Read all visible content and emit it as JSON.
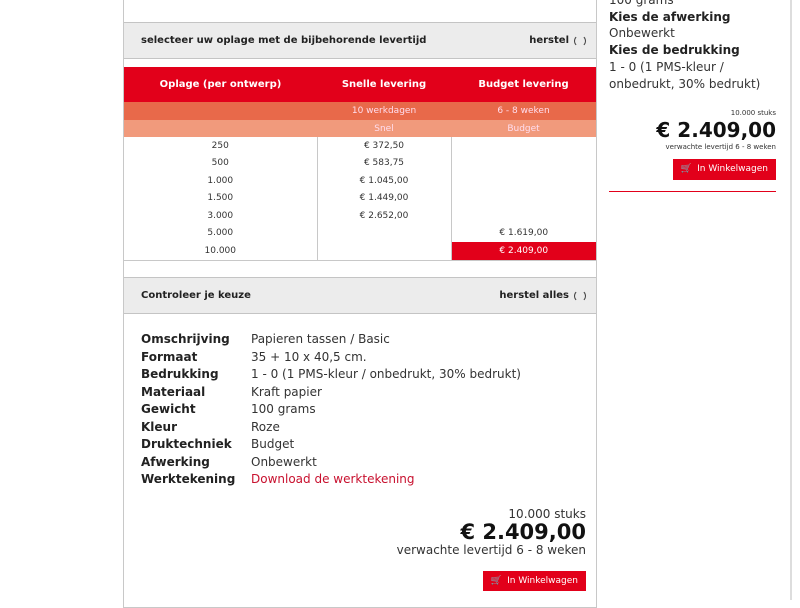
{
  "quantity_section": {
    "title": "selecteer uw oplage met de bijbehorende levertijd",
    "reset_label": "herstel",
    "table": {
      "headers": [
        "Oplage (per ontwerp)",
        "Snelle levering",
        "Budget levering"
      ],
      "delivery_times": [
        "",
        "10 werkdagen",
        "6 - 8 weken"
      ],
      "types": [
        "",
        "Snel",
        "Budget"
      ],
      "rows": [
        {
          "qty": "250",
          "fast": "€ 372,50",
          "budget": ""
        },
        {
          "qty": "500",
          "fast": "€ 583,75",
          "budget": ""
        },
        {
          "qty": "1.000",
          "fast": "€ 1.045,00",
          "budget": ""
        },
        {
          "qty": "1.500",
          "fast": "€ 1.449,00",
          "budget": ""
        },
        {
          "qty": "3.000",
          "fast": "€ 2.652,00",
          "budget": ""
        },
        {
          "qty": "5.000",
          "fast": "",
          "budget": "€ 1.619,00"
        },
        {
          "qty": "10.000",
          "fast": "",
          "budget": "€ 2.409,00"
        }
      ],
      "selected": "10.000 / Budget"
    }
  },
  "review_section": {
    "title": "Controleer je keuze",
    "reset_label": "herstel alles",
    "details": [
      {
        "label": "Omschrijving",
        "value": "Papieren tassen / Basic"
      },
      {
        "label": "Formaat",
        "value": "35 + 10 x 40,5 cm."
      },
      {
        "label": "Bedrukking",
        "value": "1 - 0 (1 PMS-kleur / onbedrukt, 30% bedrukt)"
      },
      {
        "label": "Materiaal",
        "value": "Kraft papier"
      },
      {
        "label": "Gewicht",
        "value": "100 grams"
      },
      {
        "label": "Kleur",
        "value": "Roze"
      },
      {
        "label": "Druktechniek",
        "value": "Budget"
      },
      {
        "label": "Afwerking",
        "value": "Onbewerkt"
      },
      {
        "label": "Werktekening",
        "value": "Download de werktekening"
      }
    ],
    "quantity": "10.000 stuks",
    "price": "€ 2.409,00",
    "delivery": "verwachte levertijd 6 - 8 weken",
    "cart_button": "In Winkelwagen"
  },
  "sidebar": {
    "lines": [
      "100 grams",
      "Kies de afwerking",
      "Onbewerkt",
      "Kies de bedrukking",
      "1 - 0 (1 PMS-kleur / onbedrukt, 30% bedrukt)"
    ],
    "quantity": "10.000 stuks",
    "price": "€ 2.409,00",
    "delivery": "verwachte levertijd 6 - 8 weken",
    "cart_button": "In Winkelwagen"
  },
  "colors": {
    "brand": "#e2001a",
    "row2": "#e8694a",
    "row3": "#f19a7c"
  }
}
